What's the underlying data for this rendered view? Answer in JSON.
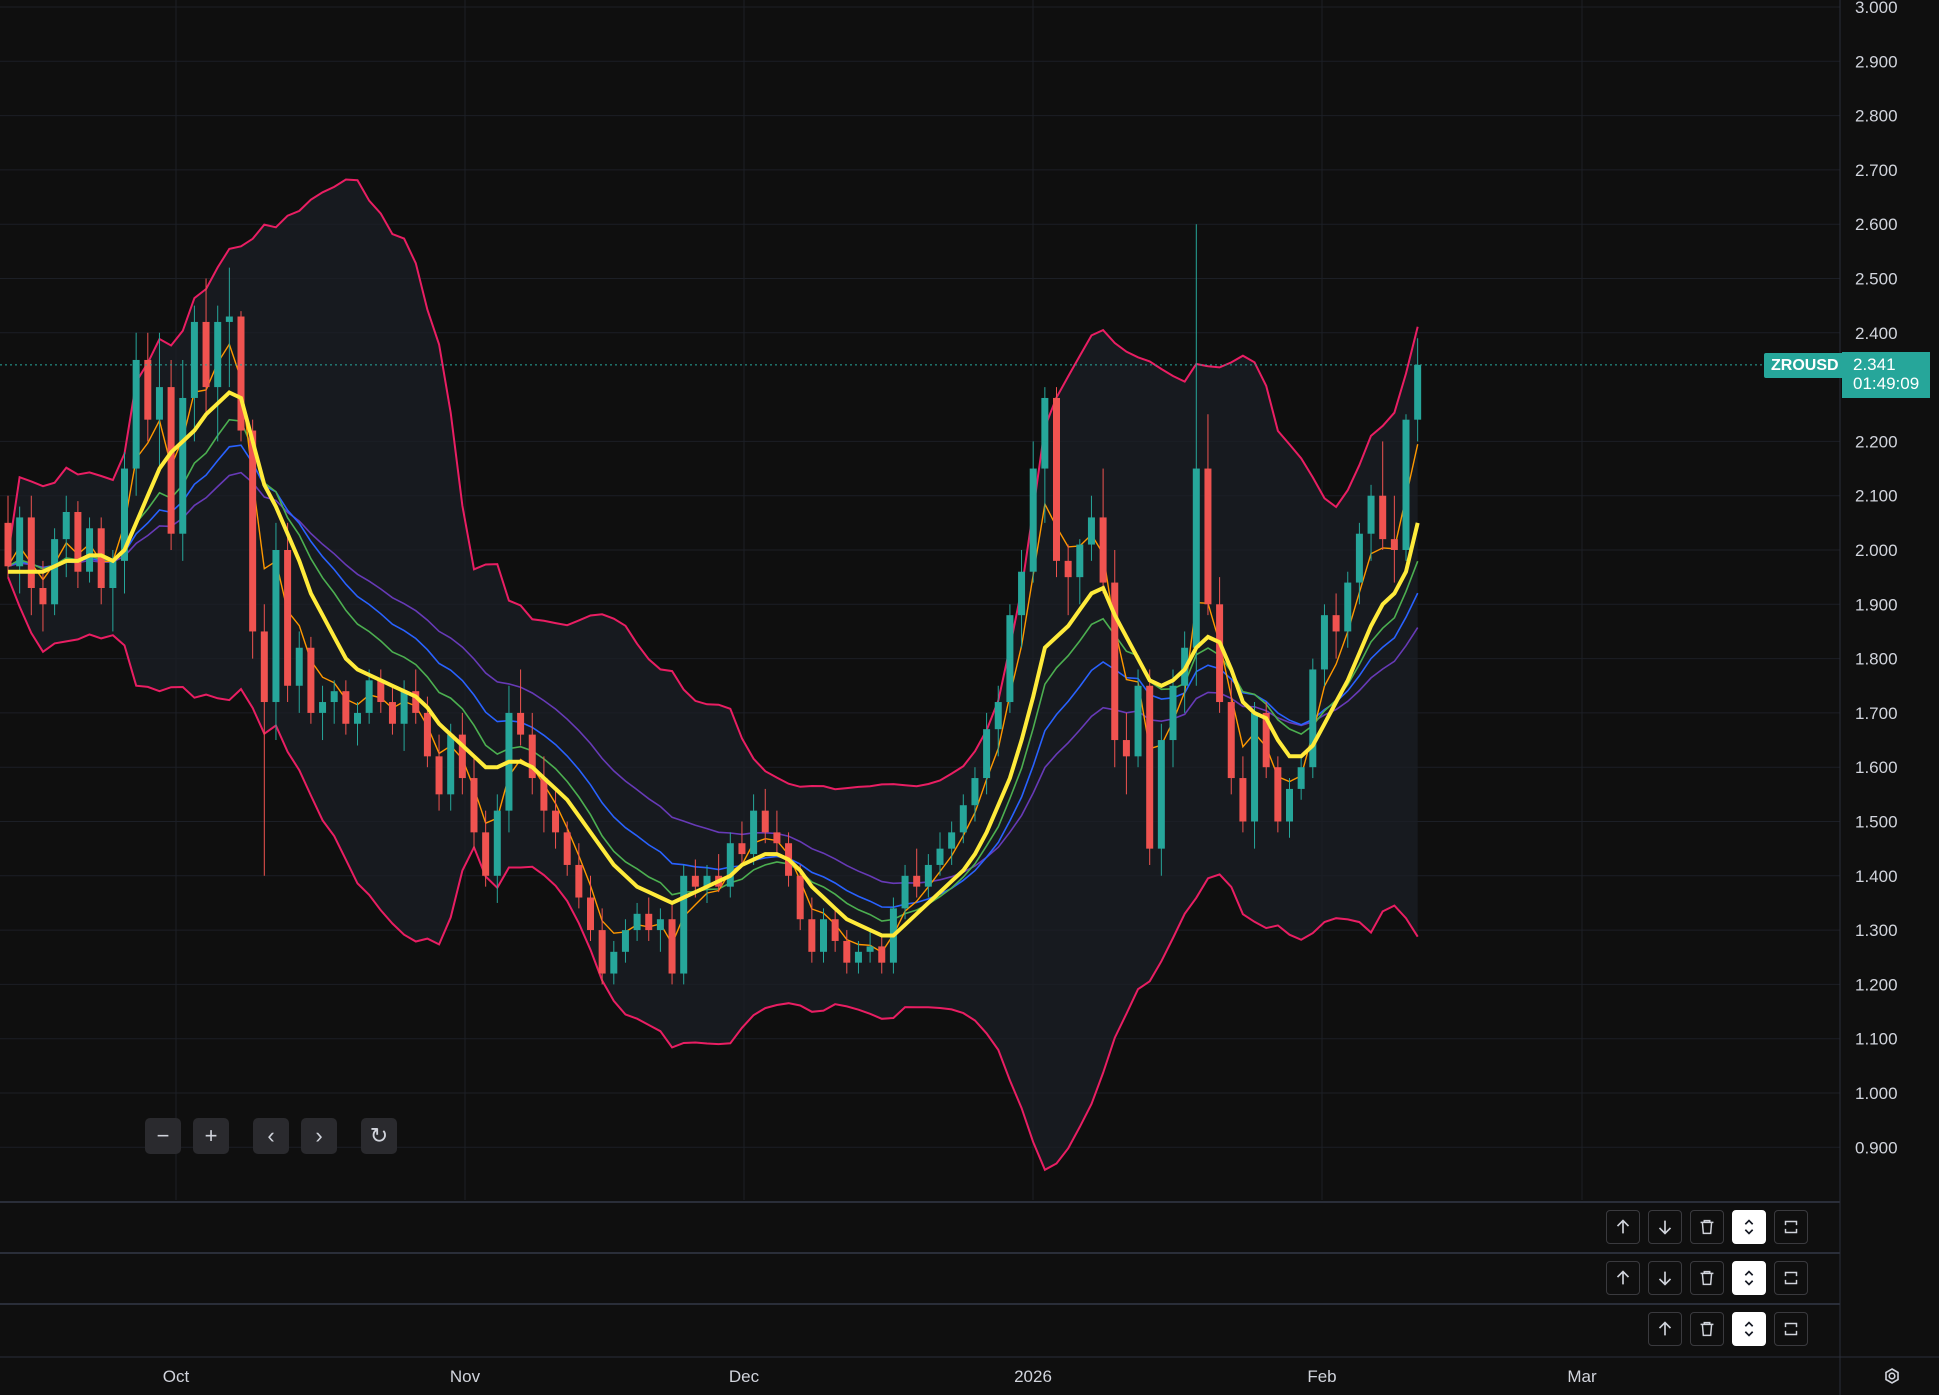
{
  "symbol": {
    "name": "ZROUSD",
    "last_price": "2.341",
    "countdown": "01:49:09"
  },
  "price_axis": {
    "labels": [
      "3.000",
      "2.900",
      "2.800",
      "2.700",
      "2.600",
      "2.500",
      "2.400",
      "2.200",
      "2.100",
      "2.000",
      "1.900",
      "1.800",
      "1.700",
      "1.600",
      "1.500",
      "1.400",
      "1.300",
      "1.200",
      "1.100",
      "1.000",
      "0.900"
    ]
  },
  "time_axis": {
    "labels": [
      "Oct",
      "Nov",
      "Dec",
      "2026",
      "Feb",
      "Mar"
    ]
  },
  "nav_controls": {
    "zoom_out": "−",
    "zoom_in": "+",
    "scroll_left": "‹",
    "scroll_right": "›",
    "reset": "↻"
  },
  "panes": [
    {
      "buttons": [
        "arrow-up",
        "arrow-down",
        "trash",
        "collapse",
        "maximize"
      ]
    },
    {
      "buttons": [
        "arrow-up",
        "arrow-down",
        "trash",
        "collapse",
        "maximize"
      ]
    },
    {
      "buttons": [
        "arrow-up",
        "trash",
        "collapse",
        "maximize"
      ]
    }
  ],
  "colors": {
    "bull": "#26a69a",
    "bear": "#ef5350",
    "bollinger": "#e91e63",
    "ema_fast": "#ffeb3b",
    "ema_orange": "#ff9800",
    "ema_green": "#4caf50",
    "ema_blue": "#2962ff",
    "ema_purple": "#673ab7"
  },
  "chart_data": {
    "type": "candlestick",
    "y_range": [
      0.8,
      3.0
    ],
    "candles": [
      [
        2.05,
        2.1,
        1.95,
        1.97
      ],
      [
        1.97,
        2.08,
        1.92,
        2.06
      ],
      [
        2.06,
        2.1,
        1.88,
        1.93
      ],
      [
        1.93,
        1.98,
        1.85,
        1.9
      ],
      [
        1.9,
        2.04,
        1.88,
        2.02
      ],
      [
        2.02,
        2.1,
        1.95,
        2.07
      ],
      [
        2.07,
        2.09,
        1.93,
        1.96
      ],
      [
        1.96,
        2.06,
        1.94,
        2.04
      ],
      [
        2.04,
        2.06,
        1.9,
        1.93
      ],
      [
        1.93,
        2.0,
        1.85,
        1.98
      ],
      [
        1.98,
        2.18,
        1.92,
        2.15
      ],
      [
        2.15,
        2.4,
        2.1,
        2.35
      ],
      [
        2.35,
        2.4,
        2.2,
        2.24
      ],
      [
        2.24,
        2.4,
        2.15,
        2.3
      ],
      [
        2.3,
        2.35,
        2.0,
        2.03
      ],
      [
        2.03,
        2.35,
        1.98,
        2.28
      ],
      [
        2.28,
        2.45,
        2.2,
        2.42
      ],
      [
        2.42,
        2.5,
        2.25,
        2.3
      ],
      [
        2.3,
        2.45,
        2.2,
        2.42
      ],
      [
        2.42,
        2.52,
        2.3,
        2.43
      ],
      [
        2.43,
        2.44,
        2.2,
        2.22
      ],
      [
        2.22,
        2.24,
        1.8,
        1.85
      ],
      [
        1.85,
        1.9,
        1.4,
        1.72
      ],
      [
        1.72,
        2.05,
        1.65,
        2.0
      ],
      [
        2.0,
        2.05,
        1.72,
        1.75
      ],
      [
        1.75,
        1.85,
        1.7,
        1.82
      ],
      [
        1.82,
        1.84,
        1.68,
        1.7
      ],
      [
        1.7,
        1.75,
        1.65,
        1.72
      ],
      [
        1.72,
        1.76,
        1.68,
        1.74
      ],
      [
        1.74,
        1.76,
        1.66,
        1.68
      ],
      [
        1.68,
        1.72,
        1.64,
        1.7
      ],
      [
        1.7,
        1.78,
        1.68,
        1.76
      ],
      [
        1.76,
        1.78,
        1.7,
        1.72
      ],
      [
        1.72,
        1.75,
        1.66,
        1.68
      ],
      [
        1.68,
        1.76,
        1.63,
        1.74
      ],
      [
        1.74,
        1.78,
        1.68,
        1.7
      ],
      [
        1.7,
        1.73,
        1.6,
        1.62
      ],
      [
        1.62,
        1.66,
        1.52,
        1.55
      ],
      [
        1.55,
        1.68,
        1.52,
        1.66
      ],
      [
        1.66,
        1.7,
        1.55,
        1.58
      ],
      [
        1.58,
        1.62,
        1.45,
        1.48
      ],
      [
        1.48,
        1.52,
        1.38,
        1.4
      ],
      [
        1.4,
        1.55,
        1.35,
        1.52
      ],
      [
        1.52,
        1.75,
        1.48,
        1.7
      ],
      [
        1.7,
        1.78,
        1.64,
        1.66
      ],
      [
        1.66,
        1.7,
        1.55,
        1.58
      ],
      [
        1.58,
        1.62,
        1.48,
        1.52
      ],
      [
        1.52,
        1.56,
        1.45,
        1.48
      ],
      [
        1.48,
        1.5,
        1.4,
        1.42
      ],
      [
        1.42,
        1.46,
        1.34,
        1.36
      ],
      [
        1.36,
        1.4,
        1.28,
        1.3
      ],
      [
        1.3,
        1.34,
        1.2,
        1.22
      ],
      [
        1.22,
        1.28,
        1.2,
        1.26
      ],
      [
        1.26,
        1.32,
        1.24,
        1.3
      ],
      [
        1.3,
        1.35,
        1.28,
        1.33
      ],
      [
        1.33,
        1.36,
        1.28,
        1.3
      ],
      [
        1.3,
        1.34,
        1.26,
        1.32
      ],
      [
        1.32,
        1.35,
        1.2,
        1.22
      ],
      [
        1.22,
        1.42,
        1.2,
        1.4
      ],
      [
        1.4,
        1.43,
        1.36,
        1.38
      ],
      [
        1.38,
        1.42,
        1.35,
        1.4
      ],
      [
        1.4,
        1.44,
        1.37,
        1.38
      ],
      [
        1.38,
        1.48,
        1.36,
        1.46
      ],
      [
        1.46,
        1.5,
        1.42,
        1.44
      ],
      [
        1.44,
        1.55,
        1.42,
        1.52
      ],
      [
        1.52,
        1.56,
        1.46,
        1.48
      ],
      [
        1.48,
        1.52,
        1.44,
        1.46
      ],
      [
        1.46,
        1.48,
        1.38,
        1.4
      ],
      [
        1.4,
        1.42,
        1.3,
        1.32
      ],
      [
        1.32,
        1.36,
        1.24,
        1.26
      ],
      [
        1.26,
        1.34,
        1.24,
        1.32
      ],
      [
        1.32,
        1.34,
        1.26,
        1.28
      ],
      [
        1.28,
        1.3,
        1.22,
        1.24
      ],
      [
        1.24,
        1.28,
        1.22,
        1.26
      ],
      [
        1.26,
        1.3,
        1.24,
        1.27
      ],
      [
        1.27,
        1.29,
        1.22,
        1.24
      ],
      [
        1.24,
        1.36,
        1.22,
        1.34
      ],
      [
        1.34,
        1.42,
        1.32,
        1.4
      ],
      [
        1.4,
        1.45,
        1.36,
        1.38
      ],
      [
        1.38,
        1.44,
        1.36,
        1.42
      ],
      [
        1.42,
        1.48,
        1.4,
        1.45
      ],
      [
        1.45,
        1.5,
        1.42,
        1.48
      ],
      [
        1.48,
        1.55,
        1.46,
        1.53
      ],
      [
        1.53,
        1.6,
        1.5,
        1.58
      ],
      [
        1.58,
        1.7,
        1.55,
        1.67
      ],
      [
        1.67,
        1.75,
        1.62,
        1.72
      ],
      [
        1.72,
        1.9,
        1.7,
        1.88
      ],
      [
        1.88,
        2.0,
        1.82,
        1.96
      ],
      [
        1.96,
        2.2,
        1.94,
        2.15
      ],
      [
        2.15,
        2.3,
        2.05,
        2.28
      ],
      [
        2.28,
        2.3,
        1.95,
        1.98
      ],
      [
        1.98,
        2.01,
        1.88,
        1.95
      ],
      [
        1.95,
        2.02,
        1.9,
        2.01
      ],
      [
        2.01,
        2.1,
        1.98,
        2.06
      ],
      [
        2.06,
        2.15,
        1.92,
        1.94
      ],
      [
        1.94,
        2.0,
        1.6,
        1.65
      ],
      [
        1.65,
        1.7,
        1.55,
        1.62
      ],
      [
        1.62,
        1.78,
        1.6,
        1.75
      ],
      [
        1.75,
        1.78,
        1.42,
        1.45
      ],
      [
        1.45,
        1.68,
        1.4,
        1.65
      ],
      [
        1.65,
        1.78,
        1.6,
        1.75
      ],
      [
        1.75,
        1.85,
        1.7,
        1.82
      ],
      [
        1.82,
        2.6,
        1.75,
        2.15
      ],
      [
        2.15,
        2.25,
        1.88,
        1.9
      ],
      [
        1.9,
        1.95,
        1.7,
        1.72
      ],
      [
        1.72,
        1.76,
        1.55,
        1.58
      ],
      [
        1.58,
        1.62,
        1.48,
        1.5
      ],
      [
        1.5,
        1.72,
        1.45,
        1.7
      ],
      [
        1.7,
        1.72,
        1.58,
        1.6
      ],
      [
        1.6,
        1.62,
        1.48,
        1.5
      ],
      [
        1.5,
        1.58,
        1.47,
        1.56
      ],
      [
        1.56,
        1.62,
        1.54,
        1.6
      ],
      [
        1.6,
        1.8,
        1.58,
        1.78
      ],
      [
        1.78,
        1.9,
        1.75,
        1.88
      ],
      [
        1.88,
        1.92,
        1.8,
        1.85
      ],
      [
        1.85,
        1.96,
        1.82,
        1.94
      ],
      [
        1.94,
        2.05,
        1.9,
        2.03
      ],
      [
        2.03,
        2.12,
        1.98,
        2.1
      ],
      [
        2.1,
        2.2,
        2.0,
        2.02
      ],
      [
        2.02,
        2.1,
        1.94,
        2.0
      ],
      [
        2.0,
        2.25,
        1.98,
        2.24
      ],
      [
        2.24,
        2.39,
        2.2,
        2.341
      ]
    ],
    "ema_fast": [
      1.96,
      1.96,
      1.96,
      1.96,
      1.97,
      1.98,
      1.98,
      1.99,
      1.99,
      1.98,
      2.0,
      2.05,
      2.1,
      2.15,
      2.18,
      2.2,
      2.22,
      2.25,
      2.27,
      2.29,
      2.28,
      2.2,
      2.12,
      2.08,
      2.03,
      1.98,
      1.92,
      1.88,
      1.84,
      1.8,
      1.78,
      1.77,
      1.76,
      1.75,
      1.74,
      1.73,
      1.71,
      1.68,
      1.66,
      1.64,
      1.62,
      1.6,
      1.6,
      1.61,
      1.61,
      1.6,
      1.58,
      1.56,
      1.54,
      1.51,
      1.48,
      1.45,
      1.42,
      1.4,
      1.38,
      1.37,
      1.36,
      1.35,
      1.36,
      1.37,
      1.38,
      1.39,
      1.4,
      1.42,
      1.43,
      1.44,
      1.44,
      1.43,
      1.41,
      1.38,
      1.36,
      1.34,
      1.32,
      1.31,
      1.3,
      1.29,
      1.29,
      1.31,
      1.33,
      1.35,
      1.37,
      1.39,
      1.41,
      1.44,
      1.48,
      1.53,
      1.58,
      1.65,
      1.73,
      1.82,
      1.84,
      1.86,
      1.89,
      1.92,
      1.93,
      1.88,
      1.84,
      1.8,
      1.76,
      1.75,
      1.76,
      1.78,
      1.82,
      1.84,
      1.83,
      1.78,
      1.72,
      1.7,
      1.69,
      1.65,
      1.62,
      1.62,
      1.64,
      1.68,
      1.72,
      1.76,
      1.81,
      1.86,
      1.9,
      1.92,
      1.96,
      2.05
    ]
  }
}
